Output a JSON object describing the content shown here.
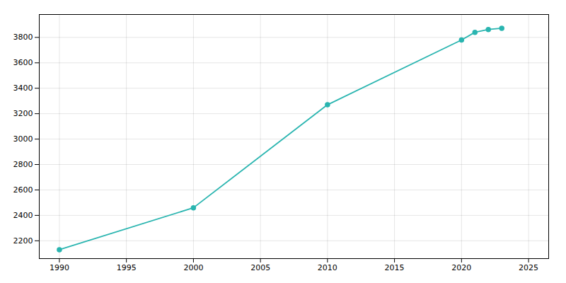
{
  "chart_data": {
    "type": "line",
    "x": [
      1990,
      2000,
      2010,
      2020,
      2021,
      2022,
      2023
    ],
    "values": [
      2130,
      2460,
      3270,
      3780,
      3840,
      3862,
      3872
    ],
    "color": "#2ab5b0",
    "marker": "circle",
    "xlim": [
      1988.5,
      2026.5
    ],
    "ylim": [
      2060,
      3980
    ],
    "xticks": [
      1990,
      1995,
      2000,
      2005,
      2010,
      2015,
      2020,
      2025
    ],
    "yticks": [
      2200,
      2400,
      2600,
      2800,
      3000,
      3200,
      3400,
      3600,
      3800
    ],
    "grid": true
  }
}
